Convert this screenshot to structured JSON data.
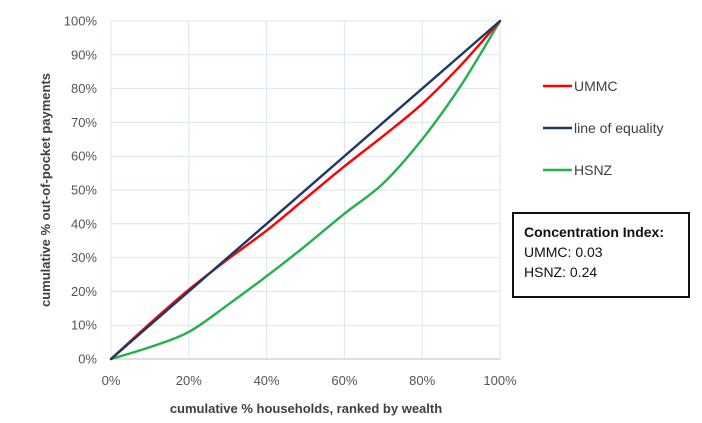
{
  "chart_data": {
    "type": "line",
    "xlabel": "cumulative % households, ranked by wealth",
    "ylabel": "cumulative % out-of-pocket payments",
    "xlim": [
      0,
      100
    ],
    "ylim": [
      0,
      100
    ],
    "x_ticks": [
      "0%",
      "20%",
      "40%",
      "60%",
      "80%",
      "100%"
    ],
    "y_ticks": [
      "0%",
      "10%",
      "20%",
      "30%",
      "40%",
      "50%",
      "60%",
      "70%",
      "80%",
      "90%",
      "100%"
    ],
    "grid": true,
    "legend_position": "right",
    "series": [
      {
        "name": "UMMC",
        "color": "#ff0000",
        "points": [
          [
            0,
            0
          ],
          [
            10,
            10.5
          ],
          [
            20,
            20.5
          ],
          [
            30,
            29.5
          ],
          [
            40,
            38
          ],
          [
            50,
            47.5
          ],
          [
            60,
            57
          ],
          [
            70,
            66
          ],
          [
            80,
            75.5
          ],
          [
            90,
            87
          ],
          [
            100,
            100
          ]
        ]
      },
      {
        "name": "line of equality",
        "color": "#1f3864",
        "points": [
          [
            0,
            0
          ],
          [
            100,
            100
          ]
        ]
      },
      {
        "name": "HSNZ",
        "color": "#22b14c",
        "points": [
          [
            0,
            0
          ],
          [
            10,
            3.5
          ],
          [
            20,
            8
          ],
          [
            30,
            16
          ],
          [
            40,
            24.5
          ],
          [
            50,
            33.5
          ],
          [
            60,
            43
          ],
          [
            70,
            52
          ],
          [
            80,
            65
          ],
          [
            90,
            81
          ],
          [
            100,
            100
          ]
        ]
      }
    ]
  },
  "concentration_box": {
    "title": "Concentration Index:",
    "lines": [
      "UMMC: 0.03",
      "HSNZ: 0.24"
    ]
  }
}
